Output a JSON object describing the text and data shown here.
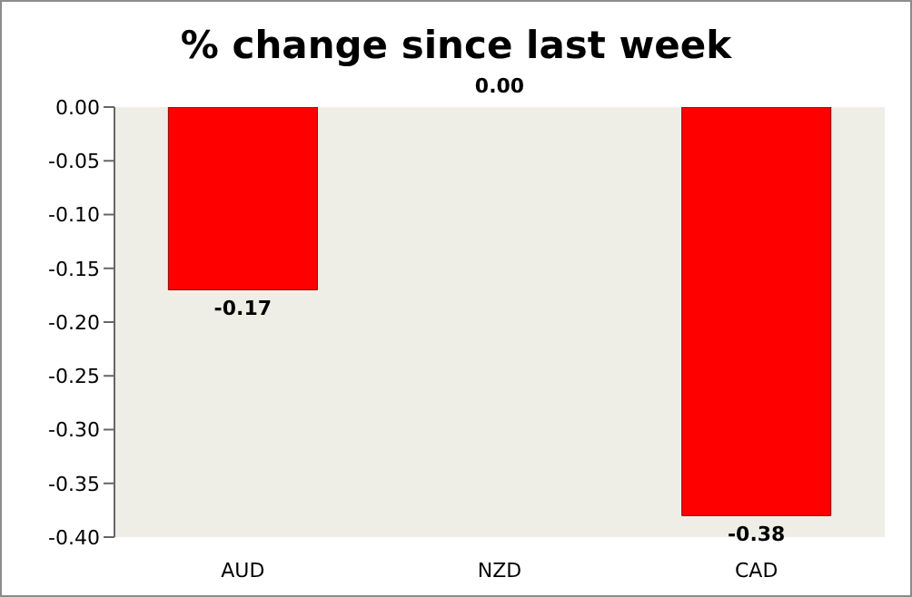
{
  "chart_data": {
    "type": "bar",
    "title": "% change since last week",
    "categories": [
      "AUD",
      "NZD",
      "CAD"
    ],
    "series": [
      {
        "color": "#ff0000",
        "values": [
          -0.17,
          0.0,
          -0.38
        ],
        "value_labels": [
          "-0.17",
          "0.00",
          "-0.38"
        ]
      }
    ],
    "ylim": [
      -0.4,
      0.0
    ],
    "yticks": [
      {
        "value": -0.4,
        "label": "-0.40"
      },
      {
        "value": -0.35,
        "label": "-0.35"
      },
      {
        "value": -0.3,
        "label": "-0.30"
      },
      {
        "value": -0.25,
        "label": "-0.25"
      },
      {
        "value": -0.2,
        "label": "-0.20"
      },
      {
        "value": -0.15,
        "label": "-0.15"
      },
      {
        "value": -0.1,
        "label": "-0.10"
      },
      {
        "value": -0.05,
        "label": "-0.05"
      },
      {
        "value": 0.0,
        "label": "0.00"
      }
    ],
    "grid": false,
    "legend": false
  }
}
